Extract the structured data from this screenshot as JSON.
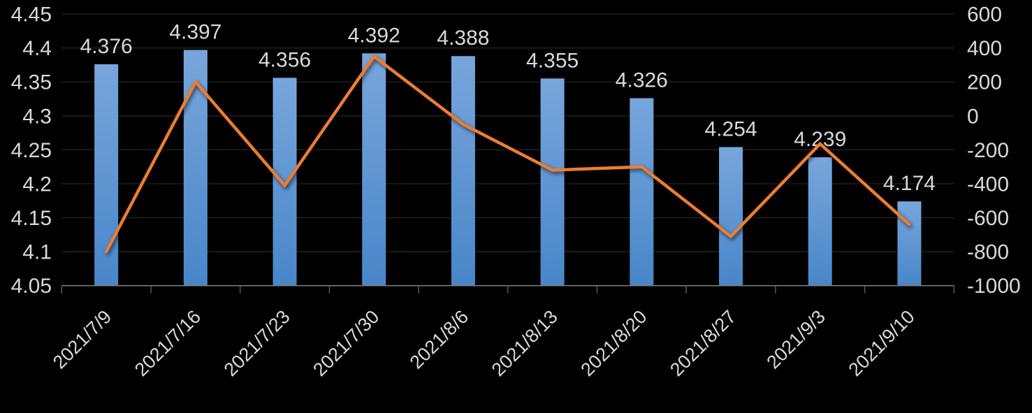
{
  "chart_data": {
    "type": "combo-bar-line",
    "title": "",
    "legend": "none",
    "background_color": "#000000",
    "text_color": "#d9d9d9",
    "gridline_color": "#282828",
    "axis_line_color": "#7f7f7f",
    "tick_mark_color": "#595959",
    "grid": true,
    "categories": [
      "2021/7/9",
      "2021/7/16",
      "2021/7/23",
      "2021/7/30",
      "2021/8/6",
      "2021/8/13",
      "2021/8/20",
      "2021/8/27",
      "2021/9/3",
      "2021/9/10"
    ],
    "series": [
      {
        "name": "bar-series",
        "type": "bar",
        "axis": "left",
        "color_top": "#78a6dc",
        "color_bottom": "#4886c9",
        "values": [
          4.376,
          4.397,
          4.356,
          4.392,
          4.388,
          4.355,
          4.326,
          4.254,
          4.239,
          4.174
        ],
        "labels": [
          "4.376",
          "4.397",
          "4.356",
          "4.392",
          "4.388",
          "4.355",
          "4.326",
          "4.254",
          "4.239",
          "4.174"
        ]
      },
      {
        "name": "line-series",
        "type": "line",
        "axis": "right",
        "color": "#ed7d31",
        "values": [
          -800,
          200,
          -410,
          350,
          -50,
          -320,
          -300,
          -710,
          -165,
          -640
        ]
      }
    ],
    "left_axis": {
      "min": 4.05,
      "max": 4.45,
      "step": 0.05,
      "ticks": [
        "4.45",
        "4.4",
        "4.35",
        "4.3",
        "4.25",
        "4.2",
        "4.15",
        "4.1",
        "4.05"
      ]
    },
    "right_axis": {
      "min": -1000,
      "max": 600,
      "step": 200,
      "ticks": [
        "600",
        "400",
        "200",
        "0",
        "-200",
        "-400",
        "-600",
        "-800",
        "-1000"
      ]
    }
  }
}
